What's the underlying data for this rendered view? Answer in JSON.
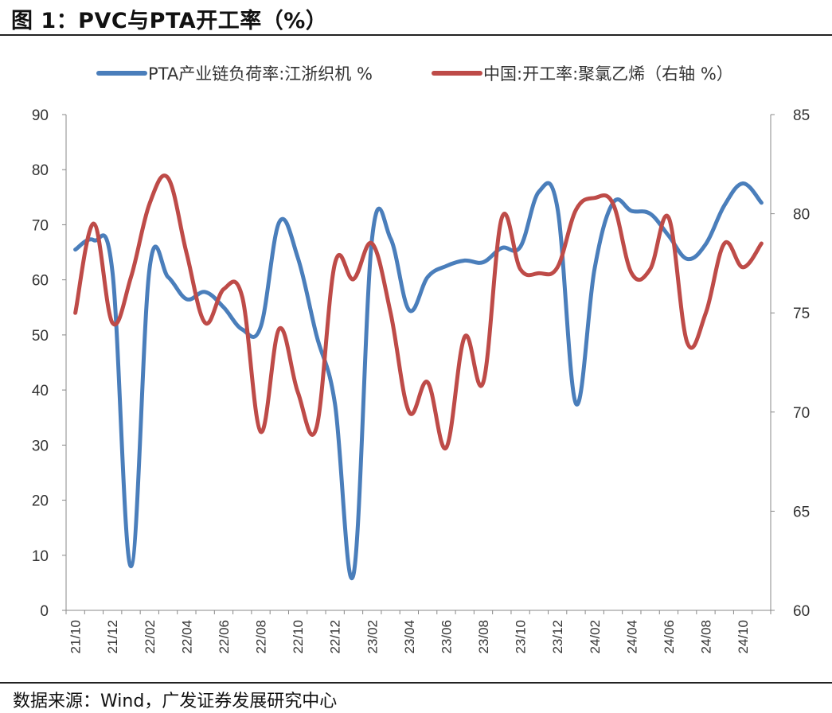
{
  "figure": {
    "title": "图 1：PVC与PTA开工率（%）",
    "source": "数据来源：Wind，广发证券发展研究中心"
  },
  "chart_data": {
    "type": "line",
    "title": "",
    "x": [
      "21/10",
      "21/11",
      "21/12",
      "22/01",
      "22/02",
      "22/03",
      "22/04",
      "22/05",
      "22/06",
      "22/07",
      "22/08",
      "22/09",
      "22/10",
      "22/11",
      "22/12",
      "23/01",
      "23/02",
      "23/03",
      "23/04",
      "23/05",
      "23/06",
      "23/07",
      "23/08",
      "23/09",
      "23/10",
      "23/11",
      "23/12",
      "24/01",
      "24/02",
      "24/03",
      "24/04",
      "24/05",
      "24/06",
      "24/07",
      "24/08",
      "24/09",
      "24/10",
      "24/11"
    ],
    "xticks": [
      "21/10",
      "21/12",
      "22/02",
      "22/04",
      "22/06",
      "22/08",
      "22/10",
      "22/12",
      "23/02",
      "23/04",
      "23/06",
      "23/08",
      "23/10",
      "23/12",
      "24/02",
      "24/04",
      "24/06",
      "24/08",
      "24/10"
    ],
    "y_left": {
      "lim": [
        0,
        90
      ],
      "ticks": [
        0,
        10,
        20,
        30,
        40,
        50,
        60,
        70,
        80,
        90
      ]
    },
    "y_right": {
      "lim": [
        60,
        85
      ],
      "ticks": [
        60,
        65,
        70,
        75,
        80,
        85
      ]
    },
    "grid": false,
    "legend_position": "top",
    "series": [
      {
        "name": "PTA产业链负荷率:江浙织机 %",
        "axis": "left",
        "color": "#4a7ebb",
        "values": [
          65.5,
          67.2,
          61.5,
          8,
          62,
          60.5,
          56.5,
          57.8,
          55,
          51,
          51.5,
          70.5,
          64,
          50,
          37.5,
          6.5,
          67.5,
          67.5,
          54.5,
          60.5,
          62.5,
          63.5,
          63.2,
          65.8,
          66,
          76,
          73,
          37.5,
          62,
          74,
          72.5,
          72,
          68,
          63.8,
          66.5,
          73.5,
          77.5,
          74
        ]
      },
      {
        "name": "中国:开工率:聚氯乙烯（右轴 %）",
        "axis": "right",
        "color": "#be4b48",
        "values": [
          75,
          79.5,
          74.5,
          76.8,
          80.5,
          81.8,
          78,
          74.5,
          76.2,
          75.8,
          69,
          74.2,
          71,
          69.2,
          77.5,
          76.7,
          78.5,
          75,
          70,
          71.5,
          68.2,
          73.8,
          71.5,
          79.8,
          77.2,
          77,
          77.3,
          80.2,
          80.8,
          80.5,
          77,
          77.2,
          79.8,
          73.5,
          75,
          78.5,
          77.3,
          78.5
        ]
      }
    ]
  }
}
